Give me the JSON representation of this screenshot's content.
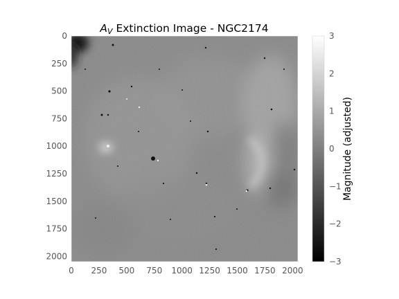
{
  "chart_data": {
    "type": "heatmap",
    "title_prefix": "A",
    "title_subscript": "V",
    "title_rest": " Extinction Image - NGC2174",
    "x_ticks": [
      0,
      250,
      500,
      750,
      1000,
      1250,
      1500,
      1750,
      2000
    ],
    "y_ticks": [
      0,
      250,
      500,
      750,
      1000,
      1250,
      1500,
      1750,
      2000
    ],
    "x_range": [
      0,
      2048
    ],
    "y_range": [
      0,
      2048
    ],
    "y_inverted": true,
    "grid": false,
    "colormap": "gray",
    "colorbar": {
      "label": "Magnitude (adjusted)",
      "range": [
        -3,
        3
      ],
      "ticks": [
        {
          "value": 3,
          "label": "3"
        },
        {
          "value": 2,
          "label": "2"
        },
        {
          "value": 1,
          "label": "1"
        },
        {
          "value": 0,
          "label": "0"
        },
        {
          "value": -1,
          "label": "−1"
        },
        {
          "value": -2,
          "label": "−2"
        },
        {
          "value": -3,
          "label": "−3"
        }
      ]
    },
    "features": [
      {
        "kind": "dark-corner",
        "x": 60,
        "y": 100,
        "value": -3
      },
      {
        "kind": "bright-knot",
        "x": 330,
        "y": 1000,
        "value": 2
      },
      {
        "kind": "dark-star",
        "x": 740,
        "y": 1120,
        "value": -3
      },
      {
        "kind": "bright-ridge",
        "x": 1700,
        "y": 1200,
        "value": 1.5
      },
      {
        "kind": "bright-ridge",
        "x": 1800,
        "y": 700,
        "value": 1.2
      }
    ]
  }
}
